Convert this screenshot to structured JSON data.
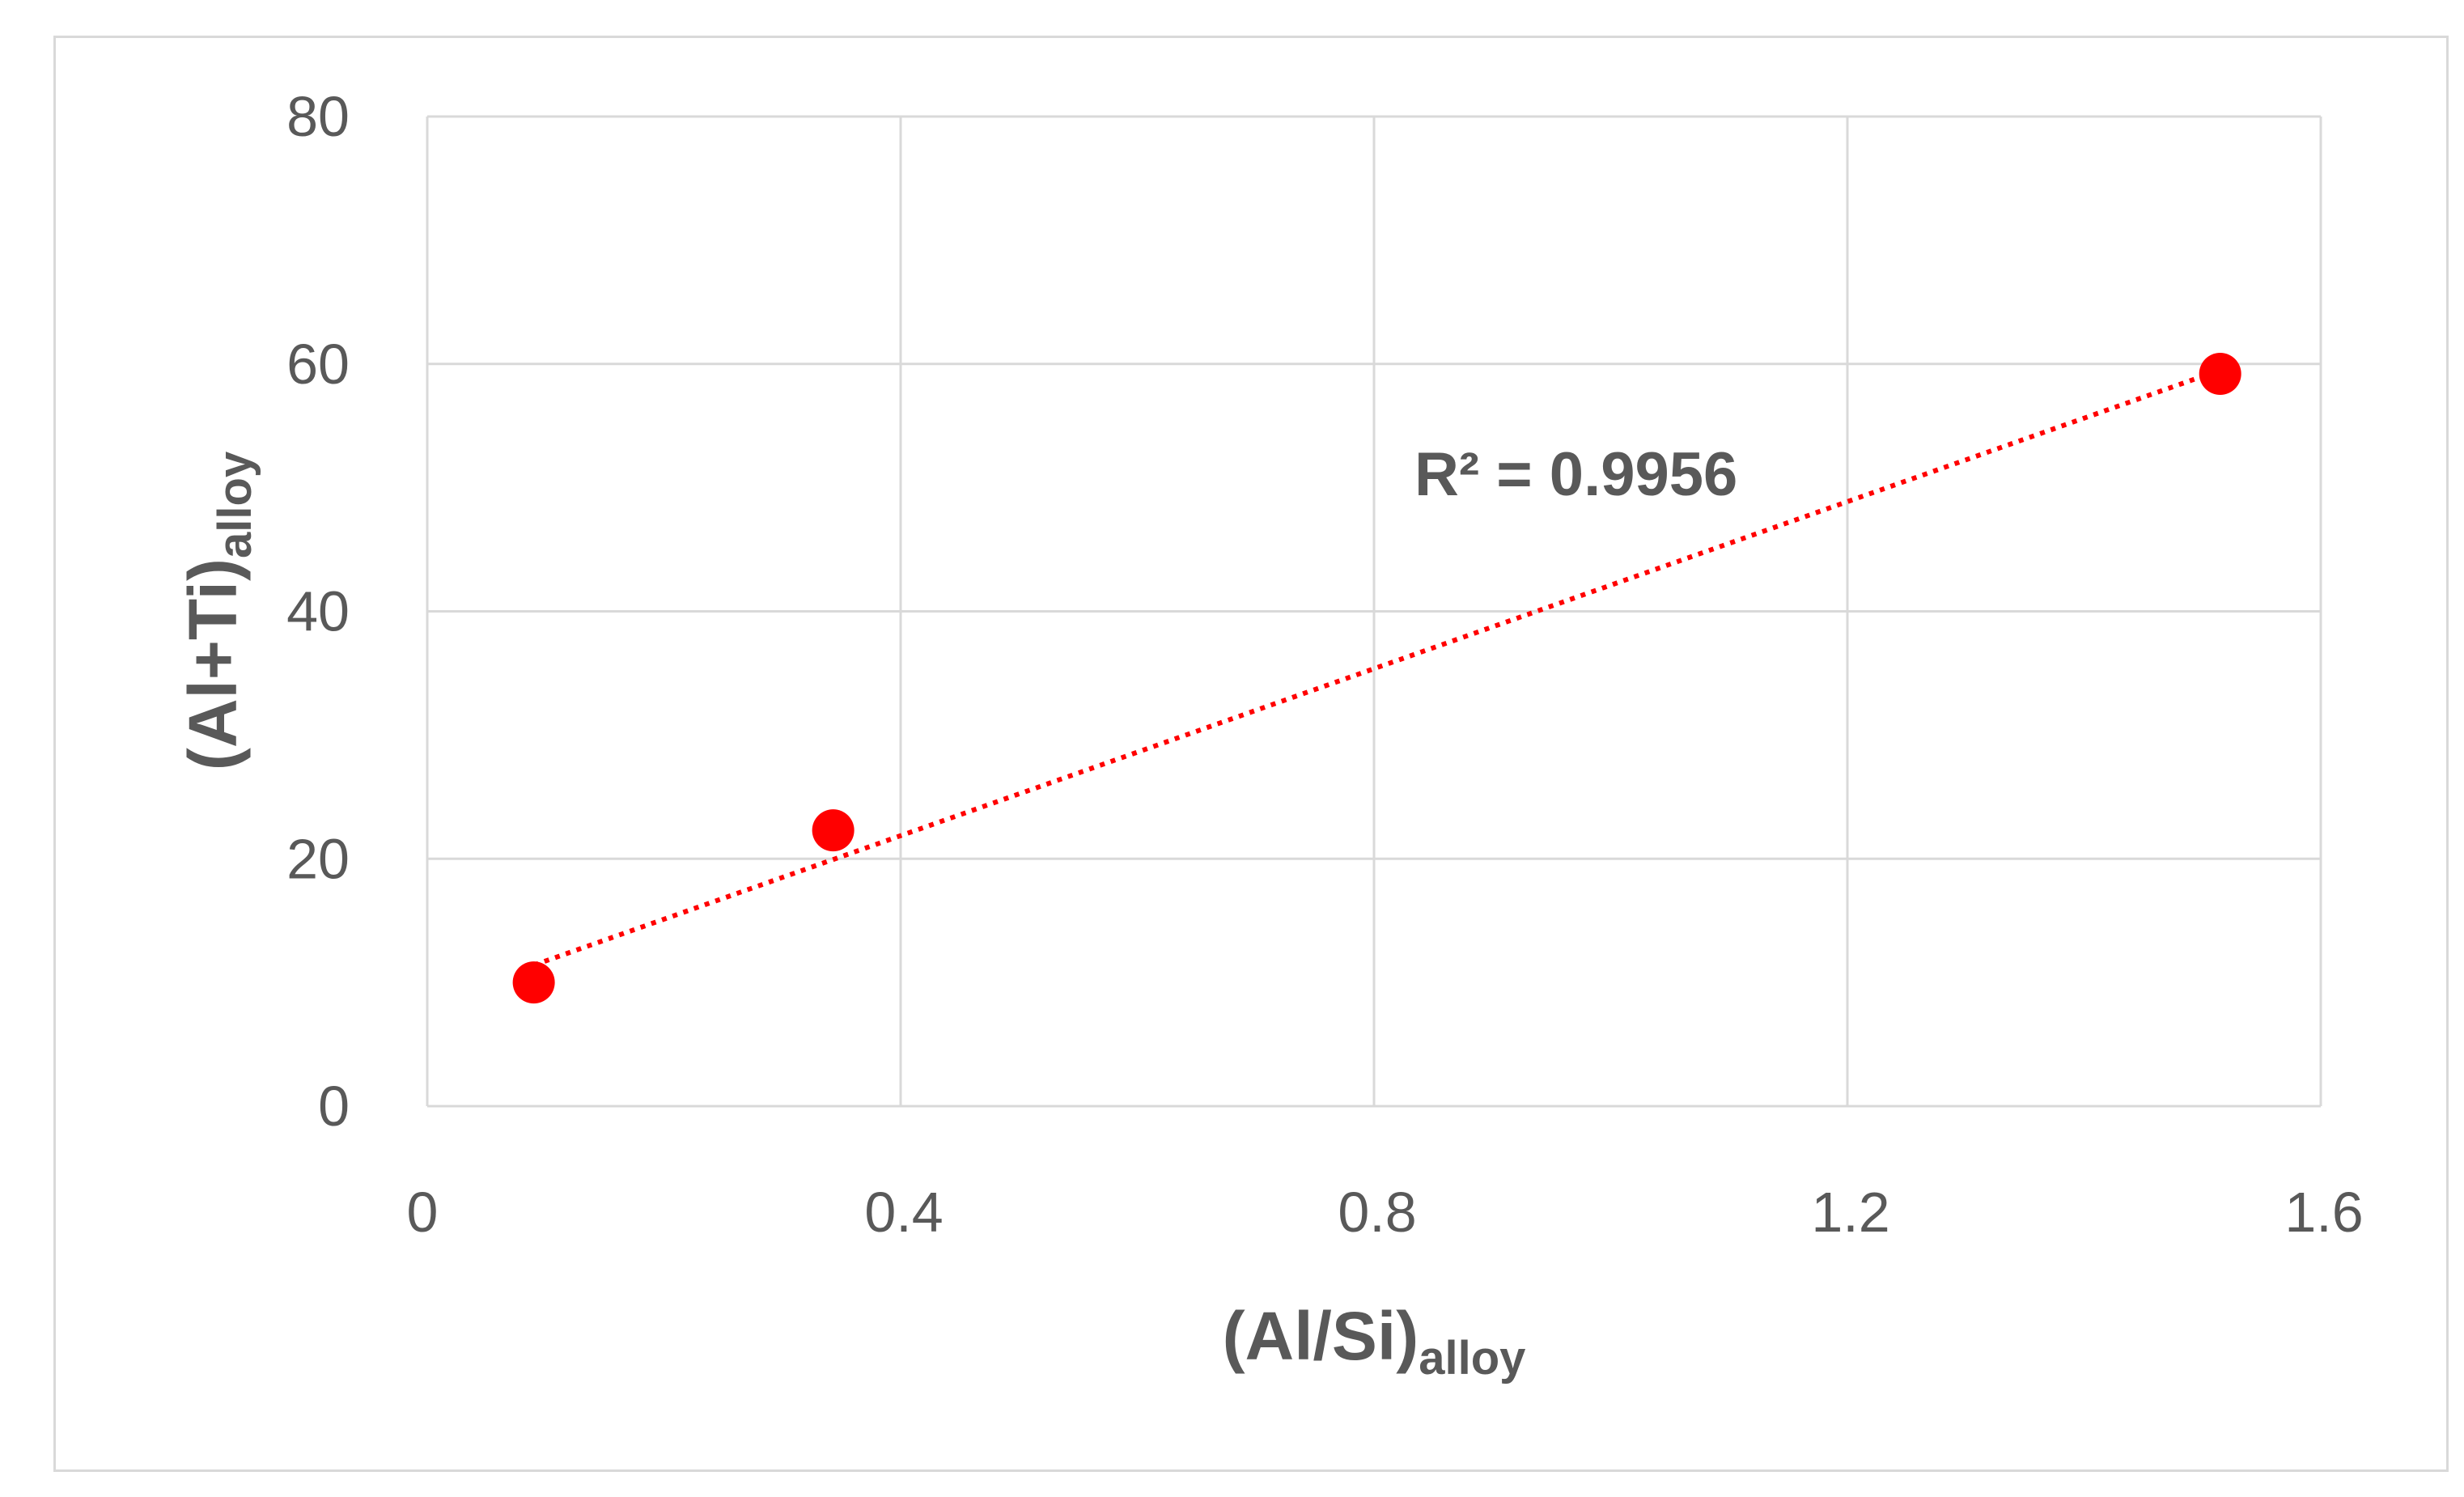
{
  "chart_data": {
    "type": "scatter",
    "xlabel": {
      "main": "(Al/Si)",
      "sub": "alloy"
    },
    "ylabel": {
      "main": "(Al+Ti)",
      "sub": "alloy"
    },
    "xlim": [
      0,
      1.6
    ],
    "ylim": [
      0,
      80
    ],
    "x_ticks": [
      "0",
      "0.4",
      "0.8",
      "1.2",
      "1.6"
    ],
    "y_ticks": [
      "0",
      "20",
      "40",
      "60",
      "80"
    ],
    "grid": true,
    "series": [
      {
        "x": [
          0.09,
          0.343,
          1.515
        ],
        "y": [
          10.0,
          22.3,
          59.2
        ],
        "color": "#ff0000"
      }
    ],
    "trendline": {
      "type": "linear",
      "style": "dotted",
      "color": "#ff0000",
      "x_range": [
        0.09,
        1.515
      ],
      "y_range": [
        11.4,
        59.5
      ]
    },
    "annotation": {
      "text": "R² = 0.9956",
      "x": 1.1,
      "y": 51.5
    }
  }
}
